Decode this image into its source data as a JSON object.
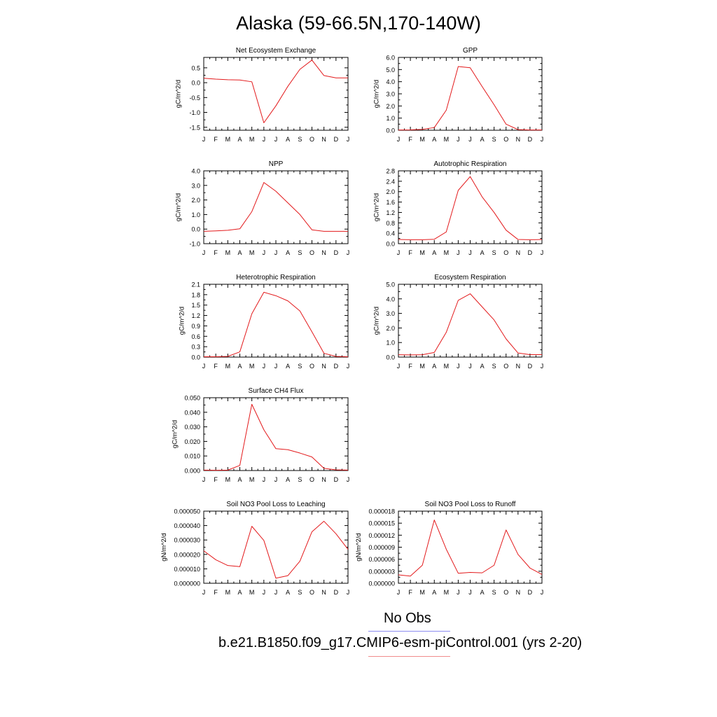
{
  "page_title": "Alaska (59-66.5N,170-140W)",
  "legend": [
    {
      "label": "No Obs",
      "color": "#8c8cf0"
    },
    {
      "label": "b.e21.B1850.f09_g17.CMIP6-esm-piControl.001 (yrs 2-20)",
      "color": "#f08c8c"
    }
  ],
  "line_color": "#e31a1c",
  "chart_data": [
    {
      "type": "line",
      "title": "Net Ecosystem Exchange",
      "ylabel": "gC/m^2/d",
      "categories": [
        "J",
        "F",
        "M",
        "A",
        "M",
        "J",
        "J",
        "A",
        "S",
        "O",
        "N",
        "D",
        "J"
      ],
      "ylim": [
        -1.6,
        0.85
      ],
      "yticks": [
        -1.5,
        -1.0,
        -0.5,
        0.0,
        0.5
      ],
      "ytick_labels": [
        "-1.5",
        "-1.0",
        "-0.5",
        "0.0",
        "0.5"
      ],
      "values": [
        0.15,
        0.12,
        0.1,
        0.09,
        0.03,
        -1.35,
        -0.78,
        -0.12,
        0.45,
        0.76,
        0.24,
        0.16,
        0.16
      ]
    },
    {
      "type": "line",
      "title": "GPP",
      "ylabel": "gC/m^2/d",
      "categories": [
        "J",
        "F",
        "M",
        "A",
        "M",
        "J",
        "J",
        "A",
        "S",
        "O",
        "N",
        "D",
        "J"
      ],
      "ylim": [
        0.0,
        6.0
      ],
      "yticks": [
        0.0,
        1.0,
        2.0,
        3.0,
        4.0,
        5.0,
        6.0
      ],
      "ytick_labels": [
        "0.0",
        "1.0",
        "2.0",
        "3.0",
        "4.0",
        "5.0",
        "6.0"
      ],
      "values": [
        0.02,
        0.03,
        0.07,
        0.22,
        1.65,
        5.25,
        5.15,
        3.6,
        2.1,
        0.5,
        0.05,
        0.02,
        0.02
      ]
    },
    {
      "type": "line",
      "title": "NPP",
      "ylabel": "gC/m^2/d",
      "categories": [
        "J",
        "F",
        "M",
        "A",
        "M",
        "J",
        "J",
        "A",
        "S",
        "O",
        "N",
        "D",
        "J"
      ],
      "ylim": [
        -1.0,
        4.0
      ],
      "yticks": [
        -1.0,
        0.0,
        1.0,
        2.0,
        3.0,
        4.0
      ],
      "ytick_labels": [
        "-1.0",
        "0.0",
        "1.0",
        "2.0",
        "3.0",
        "4.0"
      ],
      "values": [
        -0.15,
        -0.12,
        -0.08,
        0.02,
        1.2,
        3.2,
        2.6,
        1.8,
        1.0,
        -0.05,
        -0.15,
        -0.15,
        -0.15
      ]
    },
    {
      "type": "line",
      "title": "Autotrophic Respiration",
      "ylabel": "gC/m^2/d",
      "categories": [
        "J",
        "F",
        "M",
        "A",
        "M",
        "J",
        "J",
        "A",
        "S",
        "O",
        "N",
        "D",
        "J"
      ],
      "ylim": [
        0.0,
        2.8
      ],
      "yticks": [
        0.0,
        0.4,
        0.8,
        1.2,
        1.6,
        2.0,
        2.4,
        2.8
      ],
      "ytick_labels": [
        "0.0",
        "0.4",
        "0.8",
        "1.2",
        "1.6",
        "2.0",
        "2.4",
        "2.8"
      ],
      "values": [
        0.16,
        0.15,
        0.15,
        0.17,
        0.45,
        2.05,
        2.58,
        1.8,
        1.2,
        0.52,
        0.16,
        0.15,
        0.16
      ]
    },
    {
      "type": "line",
      "title": "Heterotrophic Respiration",
      "ylabel": "gC/m^2/d",
      "categories": [
        "J",
        "F",
        "M",
        "A",
        "M",
        "J",
        "J",
        "A",
        "S",
        "O",
        "N",
        "D",
        "J"
      ],
      "ylim": [
        0.0,
        2.1
      ],
      "yticks": [
        0.0,
        0.3,
        0.6,
        0.9,
        1.2,
        1.5,
        1.8,
        2.1
      ],
      "ytick_labels": [
        "0.0",
        "0.3",
        "0.6",
        "0.9",
        "1.2",
        "1.5",
        "1.8",
        "2.1"
      ],
      "values": [
        0.01,
        0.01,
        0.02,
        0.15,
        1.25,
        1.87,
        1.77,
        1.62,
        1.33,
        0.73,
        0.11,
        0.02,
        0.01
      ]
    },
    {
      "type": "line",
      "title": "Ecosystem Respiration",
      "ylabel": "gC/m^2/d",
      "categories": [
        "J",
        "F",
        "M",
        "A",
        "M",
        "J",
        "J",
        "A",
        "S",
        "O",
        "N",
        "D",
        "J"
      ],
      "ylim": [
        0.0,
        5.0
      ],
      "yticks": [
        0.0,
        1.0,
        2.0,
        3.0,
        4.0,
        5.0
      ],
      "ytick_labels": [
        "0.0",
        "1.0",
        "2.0",
        "3.0",
        "4.0",
        "5.0"
      ],
      "values": [
        0.16,
        0.15,
        0.16,
        0.32,
        1.7,
        3.9,
        4.35,
        3.45,
        2.55,
        1.25,
        0.28,
        0.17,
        0.17
      ]
    },
    {
      "type": "line",
      "title": "Surface CH4 Flux",
      "ylabel": "gC/m^2/d",
      "categories": [
        "J",
        "F",
        "M",
        "A",
        "M",
        "J",
        "J",
        "A",
        "S",
        "O",
        "N",
        "D",
        "J"
      ],
      "ylim": [
        0.0,
        0.05
      ],
      "yticks": [
        0.0,
        0.01,
        0.02,
        0.03,
        0.04,
        0.05
      ],
      "ytick_labels": [
        "0.000",
        "0.010",
        "0.020",
        "0.030",
        "0.040",
        "0.050"
      ],
      "values": [
        0.0003,
        0.0002,
        0.0003,
        0.0035,
        0.0455,
        0.028,
        0.015,
        0.0143,
        0.012,
        0.0093,
        0.0015,
        0.0005,
        0.0003
      ]
    },
    {
      "type": "line",
      "title": "Soil NO3 Pool Loss to Leaching",
      "ylabel": "gN/m^2/d",
      "categories": [
        "J",
        "F",
        "M",
        "A",
        "M",
        "J",
        "J",
        "A",
        "S",
        "O",
        "N",
        "D",
        "J"
      ],
      "ylim": [
        0.0,
        5e-05
      ],
      "yticks": [
        0.0,
        1e-05,
        2e-05,
        3e-05,
        4e-05,
        5e-05
      ],
      "ytick_labels": [
        "0.000000",
        "0.000010",
        "0.000020",
        "0.000030",
        "0.000040",
        "0.000050"
      ],
      "values": [
        2.25e-05,
        1.63e-05,
        1.23e-05,
        1.15e-05,
        3.95e-05,
        2.97e-05,
        3.5e-06,
        5.3e-06,
        1.53e-05,
        3.57e-05,
        4.3e-05,
        3.43e-05,
        2.35e-05
      ]
    },
    {
      "type": "line",
      "title": "Soil NO3 Pool Loss to Runoff",
      "ylabel": "gN/m^2/d",
      "categories": [
        "J",
        "F",
        "M",
        "A",
        "M",
        "J",
        "J",
        "A",
        "S",
        "O",
        "N",
        "D",
        "J"
      ],
      "ylim": [
        0.0,
        1.8e-05
      ],
      "yticks": [
        0.0,
        3e-06,
        6e-06,
        9e-06,
        1.2e-05,
        1.5e-05,
        1.8e-05
      ],
      "ytick_labels": [
        "0.000000",
        "0.000003",
        "0.000006",
        "0.000009",
        "0.000012",
        "0.000015",
        "0.000018"
      ],
      "values": [
        2.1e-06,
        1.8e-06,
        4.5e-06,
        1.58e-05,
        8.5e-06,
        2.5e-06,
        2.7e-06,
        2.6e-06,
        4.5e-06,
        1.33e-05,
        7.2e-06,
        3.8e-06,
        2.2e-06
      ]
    }
  ]
}
